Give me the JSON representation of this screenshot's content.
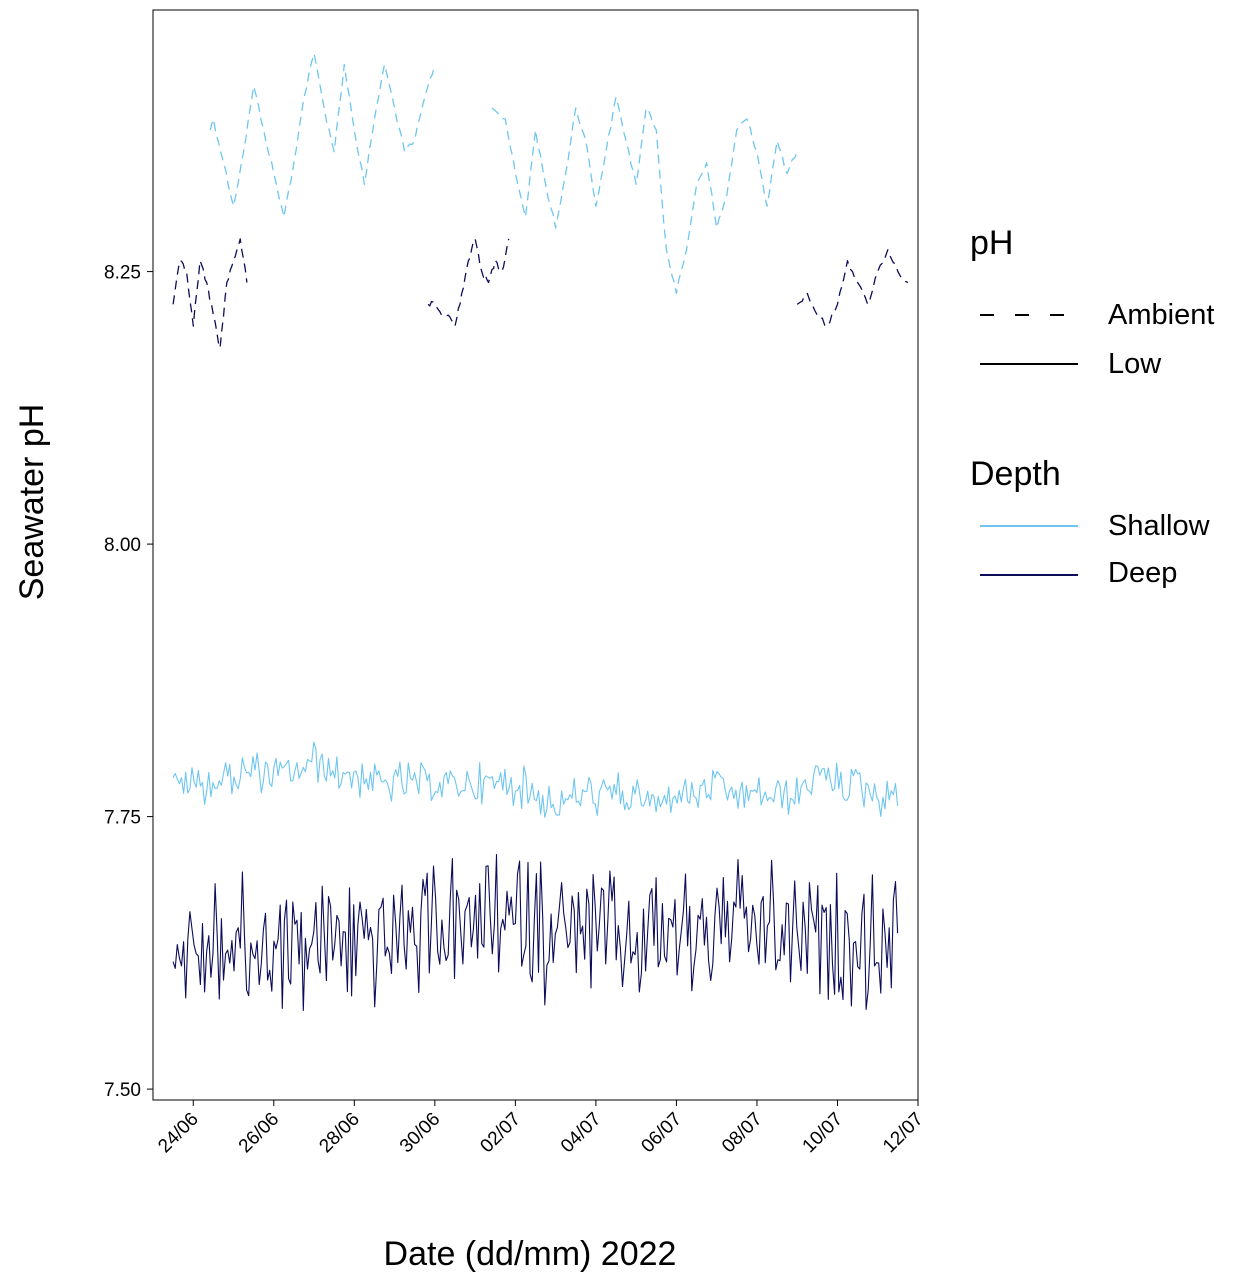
{
  "chart_data": {
    "type": "line",
    "xlabel": "Date (dd/mm) 2022",
    "ylabel": "Seawater pH",
    "x_range": [
      "2022-06-23T00:00",
      "2022-07-12T00:00"
    ],
    "ylim": [
      7.49,
      8.49
    ],
    "x_ticks": [
      "24/06",
      "26/06",
      "28/06",
      "30/06",
      "02/07",
      "04/07",
      "06/07",
      "08/07",
      "10/07",
      "12/07"
    ],
    "y_ticks": [
      "7.50",
      "7.75",
      "8.00",
      "8.25"
    ],
    "grid": false,
    "legend": {
      "position": "right",
      "groups": [
        {
          "title": "pH",
          "items": [
            {
              "label": "Ambient",
              "style": "dashed"
            },
            {
              "label": "Low",
              "style": "solid"
            }
          ]
        },
        {
          "title": "Depth",
          "items": [
            {
              "label": "Shallow",
              "color": "#6ec6f0"
            },
            {
              "label": "Deep",
              "color": "#0c0c5a"
            }
          ]
        }
      ]
    },
    "colors": {
      "shallow": "#6ec6f0",
      "deep": "#0c0c5a"
    },
    "series": [
      {
        "ph": "Ambient",
        "depth": "Shallow",
        "x": [
          "2022-06-24T10:00",
          "2022-06-24T12:00",
          "2022-06-24T18:00",
          "2022-06-25T00:00",
          "2022-06-25T06:00",
          "2022-06-25T12:00",
          "2022-06-25T18:00",
          "2022-06-26T00:00",
          "2022-06-26T06:00",
          "2022-06-26T12:00",
          "2022-06-26T18:00",
          "2022-06-27T00:00",
          "2022-06-27T06:00",
          "2022-06-27T12:00",
          "2022-06-27T18:00",
          "2022-06-28T00:00",
          "2022-06-28T06:00",
          "2022-06-28T12:00",
          "2022-06-28T18:00",
          "2022-06-29T00:00",
          "2022-06-29T06:00",
          "2022-06-29T12:00",
          "2022-06-29T18:00",
          "2022-06-30T00:00"
        ],
        "y": [
          8.38,
          8.39,
          8.35,
          8.31,
          8.36,
          8.42,
          8.38,
          8.34,
          8.3,
          8.35,
          8.41,
          8.45,
          8.4,
          8.36,
          8.44,
          8.38,
          8.33,
          8.39,
          8.44,
          8.4,
          8.36,
          8.37,
          8.41,
          8.44
        ]
      },
      {
        "ph": "Ambient",
        "depth": "Shallow",
        "x": [
          "2022-07-01T10:00",
          "2022-07-01T18:00",
          "2022-07-02T00:00",
          "2022-07-02T06:00",
          "2022-07-02T12:00",
          "2022-07-02T18:00",
          "2022-07-03T00:00",
          "2022-07-03T06:00",
          "2022-07-03T12:00",
          "2022-07-03T18:00",
          "2022-07-04T00:00",
          "2022-07-04T06:00",
          "2022-07-04T12:00",
          "2022-07-04T18:00",
          "2022-07-05T00:00",
          "2022-07-05T06:00",
          "2022-07-05T12:00",
          "2022-07-05T18:00",
          "2022-07-06T00:00",
          "2022-07-06T06:00",
          "2022-07-06T12:00",
          "2022-07-06T18:00",
          "2022-07-07T00:00",
          "2022-07-07T06:00",
          "2022-07-07T12:00",
          "2022-07-07T18:00",
          "2022-07-08T00:00",
          "2022-07-08T06:00",
          "2022-07-08T12:00",
          "2022-07-08T18:00",
          "2022-07-09T00:00"
        ],
        "y": [
          8.4,
          8.39,
          8.34,
          8.3,
          8.38,
          8.33,
          8.29,
          8.34,
          8.4,
          8.37,
          8.31,
          8.36,
          8.41,
          8.37,
          8.33,
          8.4,
          8.38,
          8.27,
          8.23,
          8.27,
          8.33,
          8.35,
          8.29,
          8.32,
          8.38,
          8.39,
          8.36,
          8.31,
          8.37,
          8.34,
          8.36
        ]
      },
      {
        "ph": "Ambient",
        "depth": "Deep",
        "x": [
          "2022-06-23T12:00",
          "2022-06-23T16:00",
          "2022-06-23T20:00",
          "2022-06-24T00:00",
          "2022-06-24T04:00",
          "2022-06-24T08:00",
          "2022-06-24T12:00",
          "2022-06-24T16:00",
          "2022-06-24T20:00",
          "2022-06-25T00:00",
          "2022-06-25T04:00",
          "2022-06-25T08:00"
        ],
        "y": [
          8.22,
          8.26,
          8.25,
          8.2,
          8.26,
          8.24,
          8.21,
          8.18,
          8.24,
          8.26,
          8.28,
          8.24
        ]
      },
      {
        "ph": "Ambient",
        "depth": "Deep",
        "x": [
          "2022-06-29T20:00",
          "2022-06-30T00:00",
          "2022-06-30T04:00",
          "2022-06-30T08:00",
          "2022-06-30T12:00",
          "2022-06-30T16:00",
          "2022-06-30T20:00",
          "2022-07-01T00:00",
          "2022-07-01T04:00",
          "2022-07-01T08:00",
          "2022-07-01T12:00",
          "2022-07-01T16:00",
          "2022-07-01T20:00"
        ],
        "y": [
          8.22,
          8.22,
          8.21,
          8.21,
          8.2,
          8.23,
          8.26,
          8.28,
          8.25,
          8.24,
          8.26,
          8.25,
          8.28
        ]
      },
      {
        "ph": "Ambient",
        "depth": "Deep",
        "x": [
          "2022-07-09T00:00",
          "2022-07-09T06:00",
          "2022-07-09T12:00",
          "2022-07-09T18:00",
          "2022-07-10T00:00",
          "2022-07-10T06:00",
          "2022-07-10T12:00",
          "2022-07-10T18:00",
          "2022-07-11T00:00",
          "2022-07-11T06:00",
          "2022-07-11T12:00",
          "2022-07-11T18:00"
        ],
        "y": [
          8.22,
          8.23,
          8.21,
          8.2,
          8.22,
          8.26,
          8.24,
          8.22,
          8.25,
          8.27,
          8.25,
          8.24
        ]
      },
      {
        "ph": "Low",
        "depth": "Shallow",
        "noise_amplitude": 0.015,
        "x": [
          "2022-06-23T12:00",
          "2022-06-24T00:00",
          "2022-06-24T12:00",
          "2022-06-25T00:00",
          "2022-06-25T12:00",
          "2022-06-26T00:00",
          "2022-06-26T12:00",
          "2022-06-27T00:00",
          "2022-06-27T12:00",
          "2022-06-28T00:00",
          "2022-06-28T12:00",
          "2022-06-29T00:00",
          "2022-06-29T12:00",
          "2022-06-30T00:00",
          "2022-06-30T12:00",
          "2022-07-01T00:00",
          "2022-07-01T12:00",
          "2022-07-02T00:00",
          "2022-07-02T12:00",
          "2022-07-03T00:00",
          "2022-07-03T12:00",
          "2022-07-04T00:00",
          "2022-07-04T12:00",
          "2022-07-05T00:00",
          "2022-07-05T12:00",
          "2022-07-06T00:00",
          "2022-07-06T12:00",
          "2022-07-07T00:00",
          "2022-07-07T12:00",
          "2022-07-08T00:00",
          "2022-07-08T12:00",
          "2022-07-09T00:00",
          "2022-07-09T12:00",
          "2022-07-10T00:00",
          "2022-07-10T12:00",
          "2022-07-11T00:00",
          "2022-07-11T12:00"
        ],
        "y": [
          7.78,
          7.78,
          7.78,
          7.79,
          7.79,
          7.79,
          7.79,
          7.8,
          7.79,
          7.79,
          7.78,
          7.78,
          7.78,
          7.78,
          7.78,
          7.78,
          7.78,
          7.78,
          7.77,
          7.76,
          7.77,
          7.77,
          7.77,
          7.77,
          7.76,
          7.77,
          7.77,
          7.78,
          7.77,
          7.77,
          7.77,
          7.77,
          7.79,
          7.78,
          7.78,
          7.77,
          7.77
        ]
      },
      {
        "ph": "Low",
        "depth": "Deep",
        "noise_amplitude": 0.05,
        "x": [
          "2022-06-23T12:00",
          "2022-06-24T12:00",
          "2022-06-25T12:00",
          "2022-06-26T12:00",
          "2022-06-27T12:00",
          "2022-06-28T12:00",
          "2022-06-29T12:00",
          "2022-06-30T12:00",
          "2022-07-01T12:00",
          "2022-07-02T12:00",
          "2022-07-03T12:00",
          "2022-07-04T12:00",
          "2022-07-05T12:00",
          "2022-07-06T12:00",
          "2022-07-07T12:00",
          "2022-07-08T12:00",
          "2022-07-09T12:00",
          "2022-07-10T12:00",
          "2022-07-11T12:00"
        ],
        "y": [
          7.63,
          7.63,
          7.63,
          7.63,
          7.64,
          7.64,
          7.64,
          7.65,
          7.65,
          7.65,
          7.64,
          7.64,
          7.64,
          7.65,
          7.65,
          7.64,
          7.64,
          7.63,
          7.63
        ]
      }
    ]
  }
}
